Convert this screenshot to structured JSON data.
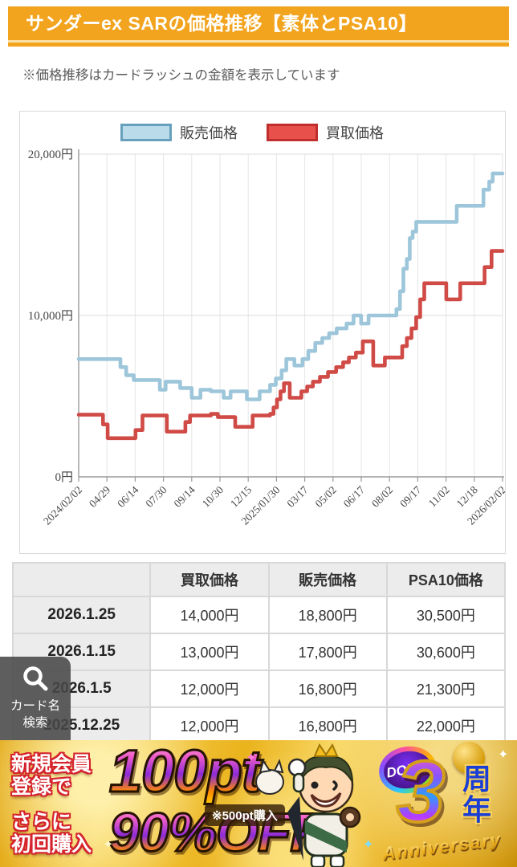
{
  "header": {
    "title": "サンダーex SARの価格推移【素体とPSA10】"
  },
  "note": "※価格推移はカードラッシュの金額を表示しています",
  "chart_data": {
    "type": "line",
    "step": true,
    "legend_position": "top",
    "grid": true,
    "x_axis": {
      "unit": "days",
      "range": [
        0,
        731
      ],
      "labels": [
        "2024/02/02",
        "04/29",
        "06/14",
        "07/30",
        "09/14",
        "10/30",
        "12/15",
        "2025/01/30",
        "03/17",
        "05/02",
        "06/17",
        "08/02",
        "09/17",
        "11/02",
        "12/18",
        "2026/02/02"
      ]
    },
    "y_axis": {
      "lim": [
        0,
        20000
      ],
      "ticks": [
        "0円",
        "10,000円",
        "20,000円"
      ],
      "tick_values": [
        0,
        10000,
        20000
      ]
    },
    "series": [
      {
        "name": "販売価格",
        "color": "#9dc6da",
        "legend_fill": "#badcea",
        "legend_border": "#67a0bd",
        "points": [
          [
            0,
            7300
          ],
          [
            72,
            6800
          ],
          [
            82,
            6300
          ],
          [
            95,
            6000
          ],
          [
            140,
            5400
          ],
          [
            150,
            5900
          ],
          [
            175,
            5500
          ],
          [
            195,
            4900
          ],
          [
            210,
            5400
          ],
          [
            228,
            5300
          ],
          [
            250,
            4900
          ],
          [
            262,
            5300
          ],
          [
            290,
            4800
          ],
          [
            312,
            5300
          ],
          [
            330,
            5700
          ],
          [
            340,
            6100
          ],
          [
            350,
            6600
          ],
          [
            358,
            7300
          ],
          [
            372,
            6900
          ],
          [
            386,
            7300
          ],
          [
            396,
            7800
          ],
          [
            408,
            8300
          ],
          [
            420,
            8600
          ],
          [
            432,
            8900
          ],
          [
            445,
            9200
          ],
          [
            462,
            9500
          ],
          [
            474,
            10000
          ],
          [
            487,
            9500
          ],
          [
            500,
            10000
          ],
          [
            548,
            10400
          ],
          [
            554,
            11500
          ],
          [
            560,
            12900
          ],
          [
            566,
            13500
          ],
          [
            571,
            14800
          ],
          [
            576,
            15200
          ],
          [
            582,
            15800
          ],
          [
            652,
            16800
          ],
          [
            698,
            17800
          ],
          [
            708,
            18300
          ],
          [
            714,
            18800
          ],
          [
            731,
            18800
          ]
        ]
      },
      {
        "name": "買取価格",
        "color": "#d04a46",
        "legend_fill": "#e8504b",
        "legend_border": "#bf2f2d",
        "points": [
          [
            0,
            3850
          ],
          [
            42,
            3250
          ],
          [
            50,
            2400
          ],
          [
            98,
            2900
          ],
          [
            110,
            3800
          ],
          [
            152,
            2800
          ],
          [
            184,
            3400
          ],
          [
            192,
            3800
          ],
          [
            228,
            3900
          ],
          [
            240,
            3700
          ],
          [
            270,
            3100
          ],
          [
            300,
            3800
          ],
          [
            330,
            3900
          ],
          [
            336,
            4300
          ],
          [
            342,
            4800
          ],
          [
            348,
            5300
          ],
          [
            354,
            5800
          ],
          [
            364,
            4900
          ],
          [
            384,
            5300
          ],
          [
            394,
            5600
          ],
          [
            404,
            5900
          ],
          [
            416,
            6200
          ],
          [
            430,
            6500
          ],
          [
            444,
            6800
          ],
          [
            456,
            7100
          ],
          [
            466,
            7400
          ],
          [
            478,
            7700
          ],
          [
            490,
            8400
          ],
          [
            508,
            6900
          ],
          [
            528,
            7400
          ],
          [
            558,
            8100
          ],
          [
            566,
            8600
          ],
          [
            574,
            9200
          ],
          [
            582,
            9900
          ],
          [
            589,
            11000
          ],
          [
            596,
            12000
          ],
          [
            634,
            11000
          ],
          [
            658,
            12000
          ],
          [
            700,
            13000
          ],
          [
            712,
            14000
          ],
          [
            731,
            14000
          ]
        ]
      }
    ]
  },
  "table": {
    "headers": [
      "",
      "買取価格",
      "販売価格",
      "PSA10価格"
    ],
    "rows": [
      {
        "date": "2026.1.25",
        "buy": "14,000円",
        "sell": "18,800円",
        "psa10": "30,500円"
      },
      {
        "date": "2026.1.15",
        "buy": "13,000円",
        "sell": "17,800円",
        "psa10": "30,600円"
      },
      {
        "date": "2026.1.5",
        "buy": "12,000円",
        "sell": "16,800円",
        "psa10": "21,300円"
      },
      {
        "date": "2025.12.25",
        "buy": "12,000円",
        "sell": "16,800円",
        "psa10": "22,000円"
      }
    ]
  },
  "search_button": {
    "line1": "カード名",
    "line2": "検索"
  },
  "banner": {
    "label1_line1": "新規会員",
    "label1_line2": "登録で",
    "points": "100pt",
    "note": "※500pt購入",
    "label2_line1": "さらに",
    "label2_line2": "初回購入",
    "off": "90%OFF",
    "brand": "DOPA!",
    "anniversary_number": "3",
    "anniversary_kanji": "周年",
    "anniversary_en": "Anniversary",
    "accent_gold": "#eab31c",
    "accent_red": "#d5232d"
  }
}
